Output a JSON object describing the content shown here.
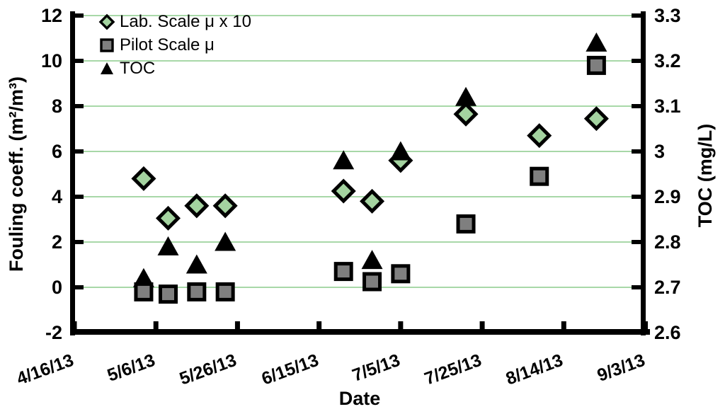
{
  "chart_data": {
    "type": "scatter",
    "x_axis": {
      "label": "Date",
      "tick_labels": [
        "4/16/13",
        "5/6/13",
        "5/26/13",
        "6/15/13",
        "7/5/13",
        "7/25/13",
        "8/14/13",
        "9/3/13"
      ],
      "start_date": "4/16/13",
      "end_date": "9/3/13",
      "year": 2013
    },
    "y_left": {
      "label": "Fouling coeff. (m²/m³)",
      "min": -2,
      "max": 12,
      "tick_labels": [
        "-2",
        "0",
        "2",
        "4",
        "6",
        "8",
        "10",
        "12"
      ],
      "gridline_values": [
        0,
        2,
        4,
        6,
        8,
        10,
        12
      ]
    },
    "y_right": {
      "label": "TOC (mg/L)",
      "min": 2.6,
      "max": 3.3,
      "tick_labels": [
        "2.6",
        "2.7",
        "2.8",
        "2.9",
        "3",
        "3.1",
        "3.2",
        "3.3"
      ]
    },
    "grid": "horizontal-on",
    "legend_position": "top-left-inside",
    "series": [
      {
        "name": "Lab. Scale μ x 10",
        "marker": "diamond",
        "axis": "left",
        "fill": "#a4d3a0",
        "points": [
          {
            "date": "5/3/13",
            "value": 4.8
          },
          {
            "date": "5/9/13",
            "value": 3.05
          },
          {
            "date": "5/16/13",
            "value": 3.6
          },
          {
            "date": "5/23/13",
            "value": 3.6
          },
          {
            "date": "6/21/13",
            "value": 4.25
          },
          {
            "date": "6/28/13",
            "value": 3.8
          },
          {
            "date": "7/5/13",
            "value": 5.6
          },
          {
            "date": "7/21/13",
            "value": 7.65
          },
          {
            "date": "8/8/13",
            "value": 6.7
          },
          {
            "date": "8/22/13",
            "value": 7.45
          }
        ]
      },
      {
        "name": "Pilot Scale μ",
        "marker": "square",
        "axis": "left",
        "fill": "#7f7f7f",
        "points": [
          {
            "date": "5/3/13",
            "value": -0.2
          },
          {
            "date": "5/9/13",
            "value": -0.3
          },
          {
            "date": "5/16/13",
            "value": -0.2
          },
          {
            "date": "5/23/13",
            "value": -0.2
          },
          {
            "date": "6/21/13",
            "value": 0.7
          },
          {
            "date": "6/28/13",
            "value": 0.25
          },
          {
            "date": "7/5/13",
            "value": 0.6
          },
          {
            "date": "7/21/13",
            "value": 2.8
          },
          {
            "date": "8/8/13",
            "value": 4.9
          },
          {
            "date": "8/22/13",
            "value": 9.8
          }
        ]
      },
      {
        "name": "TOC",
        "marker": "triangle",
        "axis": "right",
        "fill": "#000000",
        "points": [
          {
            "date": "5/3/13",
            "value": 2.72
          },
          {
            "date": "5/9/13",
            "value": 2.79
          },
          {
            "date": "5/16/13",
            "value": 2.75
          },
          {
            "date": "5/23/13",
            "value": 2.8
          },
          {
            "date": "6/21/13",
            "value": 2.98
          },
          {
            "date": "6/28/13",
            "value": 2.76
          },
          {
            "date": "7/5/13",
            "value": 3.0
          },
          {
            "date": "7/21/13",
            "value": 3.12
          },
          {
            "date": "8/22/13",
            "value": 3.24
          }
        ]
      }
    ]
  },
  "colors": {
    "background": "#ffffff",
    "gridline": "#a8d8a8",
    "spine": "#000000",
    "text": "#000000",
    "lab_scale_fill": "#a4d3a0",
    "pilot_scale_fill": "#7f7f7f",
    "toc_fill": "#000000",
    "marker_stroke": "#000000"
  }
}
